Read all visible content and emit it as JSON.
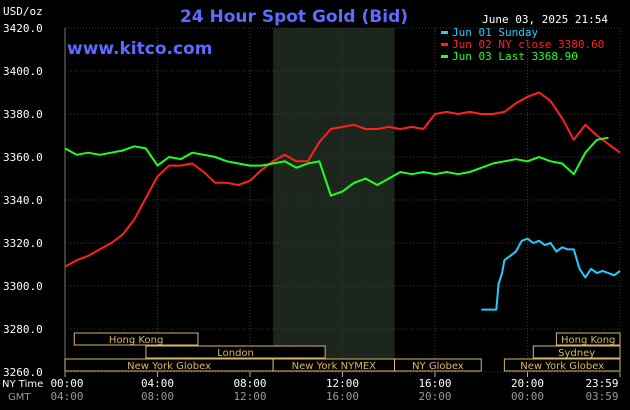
{
  "header": {
    "title": "24 Hour Spot Gold (Bid)",
    "datetime": "June 03, 2025 21:54",
    "brand": "www.kitco.com",
    "unit": "USD/oz"
  },
  "legend": [
    {
      "label": "Jun 01 Sunday",
      "color": "#22ccff"
    },
    {
      "label": "Jun 02 NY close 3380.60",
      "color": "#ff2020"
    },
    {
      "label": "Jun 03 Last 3368.90",
      "color": "#22ff22"
    }
  ],
  "sessions": [
    {
      "label": "Hong Kong",
      "row": 0,
      "start": 0.8,
      "end": 11.5
    },
    {
      "label": "Hong Kong",
      "row": 0,
      "start": 42.5,
      "end": 48
    },
    {
      "label": "London",
      "row": 1,
      "start": 7,
      "end": 22.5
    },
    {
      "label": "Sydney",
      "row": 1,
      "start": 40.5,
      "end": 48
    },
    {
      "label": "New York Globex",
      "row": 2,
      "start": 0,
      "end": 18
    },
    {
      "label": "New York NYMEX",
      "row": 2,
      "start": 18,
      "end": 28.5
    },
    {
      "label": "NY Globex",
      "row": 2,
      "start": 28.5,
      "end": 36
    },
    {
      "label": "New York Globex",
      "row": 2,
      "start": 38,
      "end": 48
    }
  ],
  "time_axis": {
    "row1_label": "NY Time",
    "row2_label": "GMT",
    "row1": [
      "00:00",
      "04:00",
      "08:00",
      "12:00",
      "16:00",
      "20:00",
      "23:59"
    ],
    "row2": [
      "04:00",
      "08:00",
      "12:00",
      "16:00",
      "20:00",
      "00:00",
      "03:59"
    ]
  },
  "chart_data": {
    "type": "line",
    "x_unit": "half-hour intervals from 00:00 NY time (0-48)",
    "xlim": [
      0,
      48
    ],
    "ylim": [
      3260,
      3420
    ],
    "y_ticks": [
      "3420.0",
      "3400.0",
      "3380.0",
      "3360.0",
      "3340.0",
      "3320.0",
      "3300.0",
      "3280.0",
      "3260.0"
    ],
    "shaded_region": [
      18,
      28.5
    ],
    "grid": true,
    "legend_position": "top-right",
    "series": [
      {
        "name": "Jun 01 Sunday",
        "color": "#22ccff",
        "x": [
          36,
          37.3,
          37.5,
          37.8,
          38,
          38.5,
          39,
          39.5,
          40,
          40.5,
          41,
          41.5,
          42,
          42.5,
          43,
          43.5,
          44,
          44.5,
          45,
          45.5,
          46,
          46.5,
          47,
          47.5,
          48
        ],
        "y": [
          3289,
          3289,
          3301,
          3306,
          3312,
          3314,
          3316,
          3321,
          3322,
          3320,
          3321,
          3319,
          3320,
          3316,
          3318,
          3317,
          3317,
          3308,
          3304,
          3308,
          3306,
          3307,
          3306,
          3305,
          3307
        ]
      },
      {
        "name": "Jun 02 NY close 3380.60",
        "color": "#ff2020",
        "x": [
          0,
          1,
          2,
          3,
          4,
          5,
          6,
          7,
          8,
          9,
          10,
          11,
          12,
          13,
          14,
          15,
          16,
          17,
          18,
          19,
          20,
          21,
          22,
          23,
          24,
          25,
          26,
          27,
          28,
          29,
          30,
          31,
          32,
          33,
          34,
          35,
          36,
          37,
          38,
          39,
          40,
          41,
          42,
          43,
          44,
          45,
          46,
          47,
          48
        ],
        "y": [
          3309,
          3312,
          3314,
          3317,
          3320,
          3324,
          3331,
          3341,
          3351,
          3356,
          3356,
          3357,
          3353,
          3348,
          3348,
          3347,
          3349,
          3354,
          3358,
          3361,
          3358,
          3358,
          3367,
          3373,
          3374,
          3375,
          3373,
          3373,
          3374,
          3373,
          3374,
          3373,
          3380,
          3381,
          3380,
          3381,
          3380,
          3380,
          3381,
          3385,
          3388,
          3390,
          3386,
          3378,
          3368,
          3375,
          3370,
          3366,
          3362
        ]
      },
      {
        "name": "Jun 03 Last 3368.90",
        "color": "#22ff22",
        "x": [
          0,
          1,
          2,
          3,
          4,
          5,
          6,
          7,
          8,
          9,
          10,
          11,
          12,
          13,
          14,
          15,
          16,
          17,
          18,
          19,
          20,
          21,
          22,
          23,
          24,
          25,
          26,
          27,
          28,
          29,
          30,
          31,
          32,
          33,
          34,
          35,
          36,
          37,
          38,
          39,
          40,
          41,
          42,
          43,
          44,
          45,
          46,
          47
        ],
        "y": [
          3364,
          3361,
          3362,
          3361,
          3362,
          3363,
          3365,
          3364,
          3356,
          3360,
          3359,
          3362,
          3361,
          3360,
          3358,
          3357,
          3356,
          3356,
          3357,
          3358,
          3355,
          3357,
          3358,
          3342,
          3344,
          3348,
          3350,
          3347,
          3350,
          3353,
          3352,
          3353,
          3352,
          3353,
          3352,
          3353,
          3355,
          3357,
          3358,
          3359,
          3358,
          3360,
          3358,
          3357,
          3352,
          3362,
          3368,
          3369
        ]
      }
    ]
  }
}
